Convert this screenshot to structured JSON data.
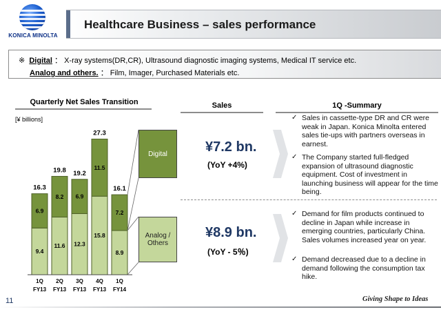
{
  "header": {
    "logo_text": "KONICA MINOLTA",
    "title": "Healthcare Business – sales performance"
  },
  "definitions": {
    "mark": "※",
    "digital_term": "Digital",
    "digital_desc": "：  X-ray systems(DR,CR), Ultrasound diagnostic imaging systems,  Medical IT service etc.",
    "analog_term": "Analog and others.",
    "analog_desc": "：  Film, Imager, Purchased Materials etc."
  },
  "sections": {
    "chart_heading": "Quarterly Net Sales Transition",
    "sales_heading": "Sales",
    "summary_heading": "1Q -Summary"
  },
  "unit_label": "[¥ billions]",
  "legend": {
    "digital": "Digital",
    "analog_line1": "Analog /",
    "analog_line2": "Others"
  },
  "sales": {
    "digital_value": "¥7.2 bn.",
    "digital_yoy": "(YoY +4%)",
    "analog_value": "¥8.9 bn.",
    "analog_yoy": "(YoY - 5％)"
  },
  "summary": {
    "digital_points": [
      "Sales in cassette-type DR and CR were weak  in Japan. Konica Minolta entered sales tie-ups with partners overseas in earnest.",
      "The Company started full-fledged expansion of ultrasound diagnostic equipment. Cost of investment in launching business will appear for the time being."
    ],
    "analog_points": [
      "Demand for film products continued to decline in Japan while increase in emerging countries, particularly China. Sales volumes increased year on year.",
      "Demand decreased due to a decline in demand following the consumption tax hike."
    ]
  },
  "footer": {
    "page_number": "11",
    "slogan": "Giving Shape to Ideas"
  },
  "colors": {
    "digital": "#76933c",
    "analog": "#c4d79b",
    "title_accent": "#1f3864"
  },
  "chart_data": {
    "type": "bar",
    "stacked": true,
    "categories": [
      [
        "1Q",
        "FY13"
      ],
      [
        "2Q",
        "FY13"
      ],
      [
        "3Q",
        "FY13"
      ],
      [
        "4Q",
        "FY13"
      ],
      [
        "1Q",
        "FY14"
      ]
    ],
    "series": [
      {
        "name": "Analog / Others",
        "values": [
          9.4,
          11.6,
          12.3,
          15.8,
          8.9
        ],
        "color": "#c4d79b"
      },
      {
        "name": "Digital",
        "values": [
          6.9,
          8.2,
          6.9,
          11.5,
          7.2
        ],
        "color": "#76933c"
      }
    ],
    "totals": [
      16.3,
      19.8,
      19.2,
      27.3,
      16.1
    ],
    "title": "Quarterly Net Sales Transition",
    "ylabel": "[¥ billions]",
    "ylim": [
      0,
      30
    ],
    "grid": false
  }
}
